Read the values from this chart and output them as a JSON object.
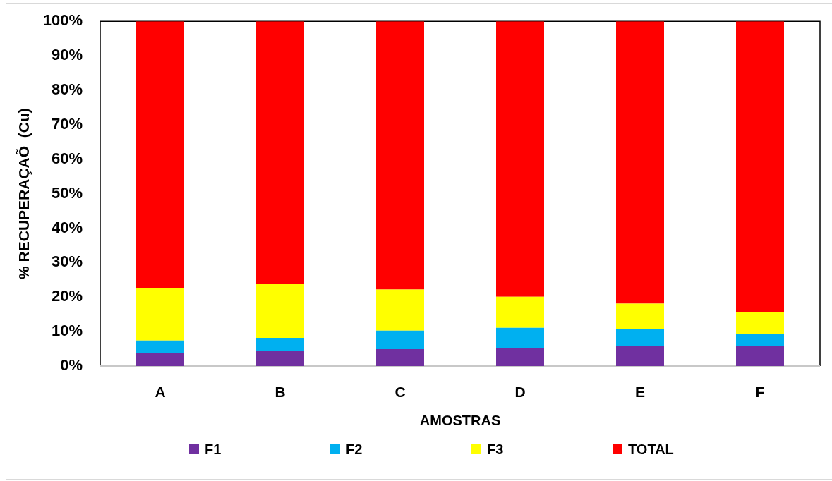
{
  "chart_data": {
    "type": "bar",
    "stacked": true,
    "categories": [
      "A",
      "B",
      "C",
      "D",
      "E",
      "F"
    ],
    "series": [
      {
        "name": "F1",
        "color": "#7030a0",
        "values": [
          3.7,
          4.5,
          4.9,
          5.3,
          5.8,
          5.8
        ]
      },
      {
        "name": "F2",
        "color": "#00b0f0",
        "values": [
          3.7,
          3.7,
          5.4,
          5.8,
          4.9,
          3.6
        ]
      },
      {
        "name": "F3",
        "color": "#ffff00",
        "values": [
          15.2,
          15.6,
          11.9,
          9.0,
          7.4,
          6.2
        ]
      },
      {
        "name": "TOTAL",
        "color": "#ff0000",
        "values": [
          77.4,
          76.2,
          77.8,
          79.9,
          81.9,
          84.4
        ]
      }
    ],
    "xlabel": "AMOSTRAS",
    "ylabel": "% RECUPERAÇAÕ  (Cu)",
    "ylim": [
      0,
      100
    ],
    "yticks": [
      {
        "value": 0,
        "label": "0%"
      },
      {
        "value": 10,
        "label": "10%"
      },
      {
        "value": 20,
        "label": "20%"
      },
      {
        "value": 30,
        "label": "30%"
      },
      {
        "value": 40,
        "label": "40%"
      },
      {
        "value": 50,
        "label": "50%"
      },
      {
        "value": 60,
        "label": "60%"
      },
      {
        "value": 70,
        "label": "70%"
      },
      {
        "value": 80,
        "label": "80%"
      },
      {
        "value": 90,
        "label": "90%"
      },
      {
        "value": 100,
        "label": "100%"
      }
    ],
    "legend": "bottom"
  }
}
